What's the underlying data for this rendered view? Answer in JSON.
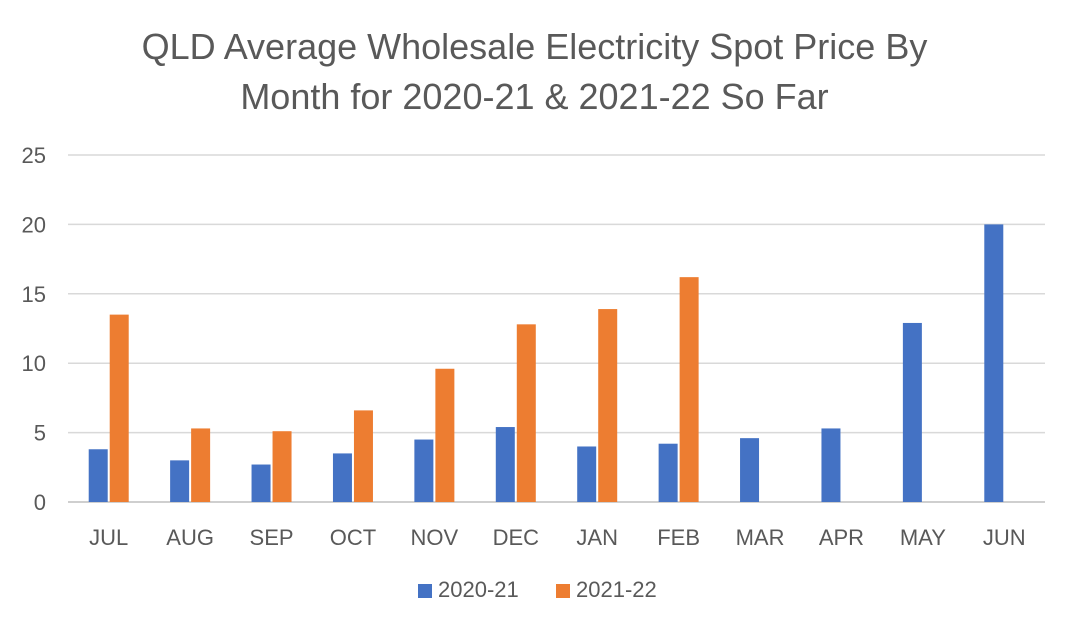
{
  "chart_data": {
    "type": "bar",
    "title": [
      "QLD Average Wholesale Electricity Spot Price By",
      "Month for 2020-21 & 2021-22 So Far"
    ],
    "categories": [
      "JUL",
      "AUG",
      "SEP",
      "OCT",
      "NOV",
      "DEC",
      "JAN",
      "FEB",
      "MAR",
      "APR",
      "MAY",
      "JUN"
    ],
    "series": [
      {
        "name": "2020-21",
        "color": "#4472C4",
        "values": [
          3.8,
          3.0,
          2.7,
          3.5,
          4.5,
          5.4,
          4.0,
          4.2,
          4.6,
          5.3,
          12.9,
          20.0
        ]
      },
      {
        "name": "2021-22",
        "color": "#ED7D31",
        "values": [
          13.5,
          5.3,
          5.1,
          6.6,
          9.6,
          12.8,
          13.9,
          16.2,
          null,
          null,
          null,
          null
        ]
      }
    ],
    "ylim": [
      0,
      25
    ],
    "yticks": [
      0,
      5,
      10,
      15,
      20,
      25
    ],
    "grid": true,
    "legend_position": "bottom"
  }
}
